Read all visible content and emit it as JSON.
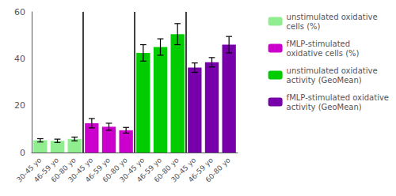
{
  "chart_data": {
    "type": "bar",
    "categories": [
      "30-45 yo",
      "46-59 yo",
      "60-80 yo",
      "30-45 yo",
      "46-59 yo",
      "60-80 yo",
      "30-45 yo",
      "46-59 yo",
      "60-80 yo",
      "30-45 yo",
      "46-59 yo",
      "60-80 yo"
    ],
    "series": [
      {
        "name": "unstimulated oxidative\ncells (%)",
        "color": "#90EE90",
        "values": [
          5.2,
          5.0,
          5.8,
          null,
          null,
          null,
          null,
          null,
          null,
          null,
          null,
          null
        ],
        "errors": [
          0.7,
          0.7,
          0.8,
          null,
          null,
          null,
          null,
          null,
          null,
          null,
          null,
          null
        ]
      },
      {
        "name": "fMLP-stimulated\noxidative cells (%)",
        "color": "#CC00CC",
        "values": [
          null,
          null,
          null,
          12.5,
          11.0,
          9.5,
          null,
          null,
          null,
          null,
          null,
          null
        ],
        "errors": [
          null,
          null,
          null,
          2.0,
          1.5,
          1.2,
          null,
          null,
          null,
          null,
          null,
          null
        ]
      },
      {
        "name": "unstimulated oxidative\nactivity (GeoMean)",
        "color": "#00CC00",
        "values": [
          null,
          null,
          null,
          null,
          null,
          null,
          42.5,
          45.0,
          50.5,
          null,
          null,
          null
        ],
        "errors": [
          null,
          null,
          null,
          null,
          null,
          null,
          3.5,
          3.5,
          4.5,
          null,
          null,
          null
        ]
      },
      {
        "name": "fMLP-stimulated oxidative\nactivity (GeoMean)",
        "color": "#7700AA",
        "values": [
          null,
          null,
          null,
          null,
          null,
          null,
          null,
          null,
          null,
          36.2,
          38.5,
          46.0
        ],
        "errors": [
          null,
          null,
          null,
          null,
          null,
          null,
          null,
          null,
          null,
          2.0,
          2.0,
          3.5
        ]
      }
    ],
    "ylim": [
      0,
      60
    ],
    "yticks": [
      0,
      20,
      40,
      60
    ],
    "grid": false,
    "legend": "right"
  }
}
